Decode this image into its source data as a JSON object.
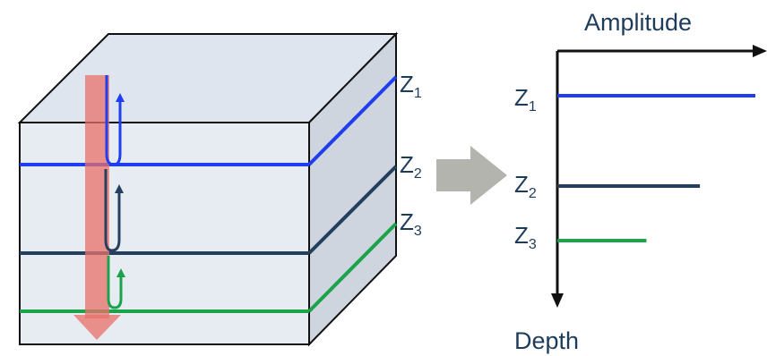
{
  "block": {
    "horizons": [
      {
        "base": "Z",
        "sub": "1",
        "color": "#1f3ef0"
      },
      {
        "base": "Z",
        "sub": "2",
        "color": "#24405e"
      },
      {
        "base": "Z",
        "sub": "3",
        "color": "#1aa34a"
      }
    ],
    "wave_color": "#e8706a"
  },
  "arrow": {
    "color": "#b2b4ad"
  },
  "plot": {
    "x_axis_label": "Amplitude",
    "y_axis_label": "Depth",
    "rows": [
      {
        "base": "Z",
        "sub": "1",
        "amplitude": 1.0,
        "color": "#1f3ef0"
      },
      {
        "base": "Z",
        "sub": "2",
        "amplitude": 0.72,
        "color": "#24405e"
      },
      {
        "base": "Z",
        "sub": "3",
        "amplitude": 0.45,
        "color": "#1aa34a"
      }
    ]
  }
}
